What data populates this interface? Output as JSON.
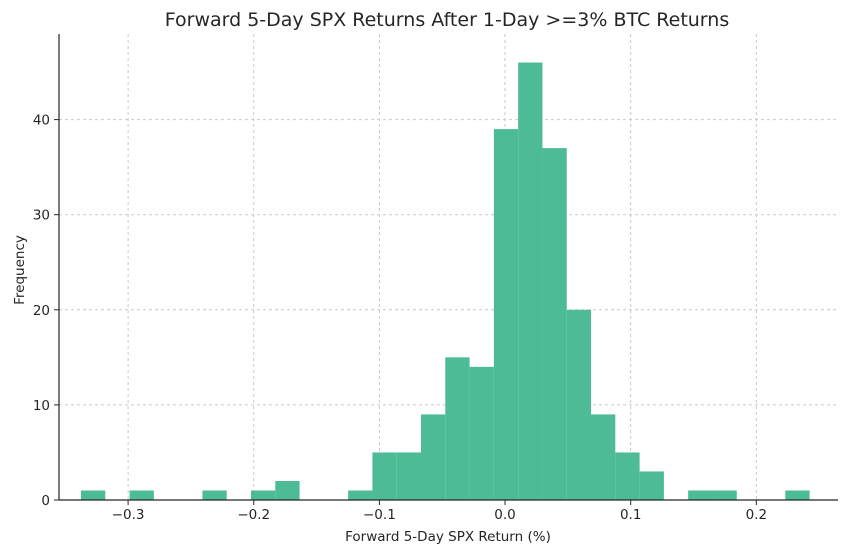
{
  "chart_data": {
    "type": "bar",
    "subtype": "histogram",
    "title": "Forward 5-Day SPX Returns After 1-Day >=3% BTC Returns",
    "xlabel": "Forward 5-Day SPX Return (%)",
    "ylabel": "Frequency",
    "xlim": [
      -0.355,
      0.265
    ],
    "ylim": [
      0,
      49
    ],
    "bin_width": 0.01933,
    "bin_start": -0.3375,
    "counts": [
      1,
      0,
      1,
      0,
      0,
      1,
      0,
      1,
      2,
      0,
      0,
      1,
      5,
      5,
      9,
      15,
      14,
      39,
      46,
      37,
      20,
      9,
      5,
      3,
      0,
      1,
      1,
      0,
      0,
      1
    ],
    "x_ticks": [
      {
        "value": -0.3,
        "label": "−0.3"
      },
      {
        "value": -0.2,
        "label": "−0.2"
      },
      {
        "value": -0.1,
        "label": "−0.1"
      },
      {
        "value": 0.0,
        "label": "0.0"
      },
      {
        "value": 0.1,
        "label": "0.1"
      },
      {
        "value": 0.2,
        "label": "0.2"
      }
    ],
    "y_ticks": [
      {
        "value": 0,
        "label": "0"
      },
      {
        "value": 10,
        "label": "10"
      },
      {
        "value": 20,
        "label": "20"
      },
      {
        "value": 30,
        "label": "30"
      },
      {
        "value": 40,
        "label": "40"
      }
    ],
    "grid": true,
    "bar_color": "#4cbb96",
    "text_color": "#262626",
    "grid_color": "#c9c9c9"
  }
}
